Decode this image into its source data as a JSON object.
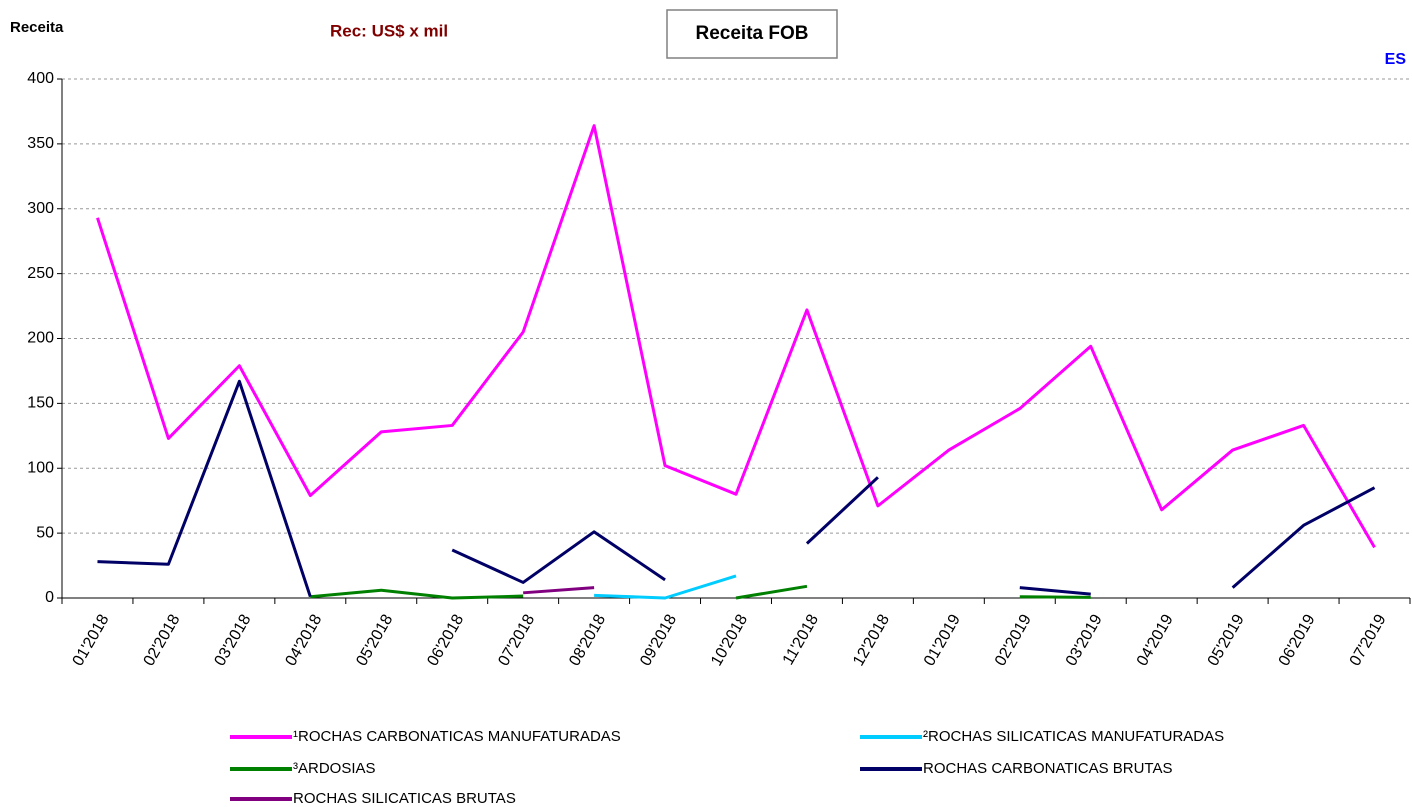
{
  "chart_data": {
    "type": "line",
    "title": "Receita FOB",
    "subtitle": "Rec: US$ x mil",
    "y_label": "Receita",
    "annotation": "ES",
    "categories": [
      "01'2018",
      "02'2018",
      "03'2018",
      "04'2018",
      "05'2018",
      "06'2018",
      "07'2018",
      "08'2018",
      "09'2018",
      "10'2018",
      "11'2018",
      "12'2018",
      "01'2019",
      "02'2019",
      "03'2019",
      "04'2019",
      "05'2019",
      "06'2019",
      "07'2019"
    ],
    "series": [
      {
        "name": "¹ROCHAS CARBONATICAS MANUFATURADAS",
        "color": "#ff00ff",
        "values": [
          293,
          123,
          179,
          79,
          128,
          133,
          205,
          364,
          102,
          80,
          222,
          71,
          114,
          146,
          194,
          68,
          114,
          133,
          39
        ]
      },
      {
        "name": "²ROCHAS SILICATICAS MANUFATURADAS",
        "color": "#00ccff",
        "values": [
          null,
          null,
          null,
          null,
          null,
          null,
          null,
          2,
          0,
          17,
          null,
          null,
          null,
          null,
          null,
          null,
          null,
          null,
          null
        ]
      },
      {
        "name": "³ARDOSIAS",
        "color": "#008000",
        "values": [
          null,
          null,
          null,
          1,
          6,
          0,
          1.5,
          null,
          null,
          0,
          9,
          null,
          null,
          1,
          0.5,
          null,
          null,
          null,
          null
        ]
      },
      {
        "name": "ROCHAS CARBONATICAS BRUTAS",
        "color": "#000066",
        "values": [
          28,
          26,
          167,
          1,
          null,
          37,
          12,
          51,
          14,
          null,
          42,
          93,
          null,
          8,
          3,
          null,
          8,
          56,
          85
        ]
      },
      {
        "name": "ROCHAS SILICATICAS BRUTAS",
        "color": "#800080",
        "values": [
          null,
          null,
          null,
          null,
          null,
          null,
          4,
          8,
          null,
          null,
          null,
          null,
          null,
          null,
          null,
          null,
          null,
          null,
          null
        ]
      }
    ],
    "ylim": [
      0,
      400
    ],
    "yticks": [
      0,
      50,
      100,
      150,
      200,
      250,
      300,
      350,
      400
    ],
    "grid": true
  }
}
